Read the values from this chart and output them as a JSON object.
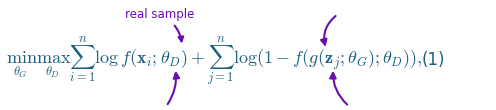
{
  "background_color": "#ffffff",
  "fig_width": 4.96,
  "fig_height": 1.1,
  "dpi": 100,
  "formula": "$\\min_{\\theta_G} \\max_{\\theta_D} \\sum_{i=1}^{n} \\log f(\\mathbf{x}_i; \\theta_D) + \\sum_{j=1}^{n} \\log(1 - f(g(\\mathbf{z}_j; \\theta_G); \\theta_D)),$",
  "equation_number": "(1)",
  "formula_color": "#1a6080",
  "arrow_color": "#6a0dad",
  "annotation_color": "#6a0dad",
  "real_sample_label": "real sample",
  "formula_fontsize": 13,
  "eq_num_fontsize": 12,
  "annotation_fontsize": 8.5
}
